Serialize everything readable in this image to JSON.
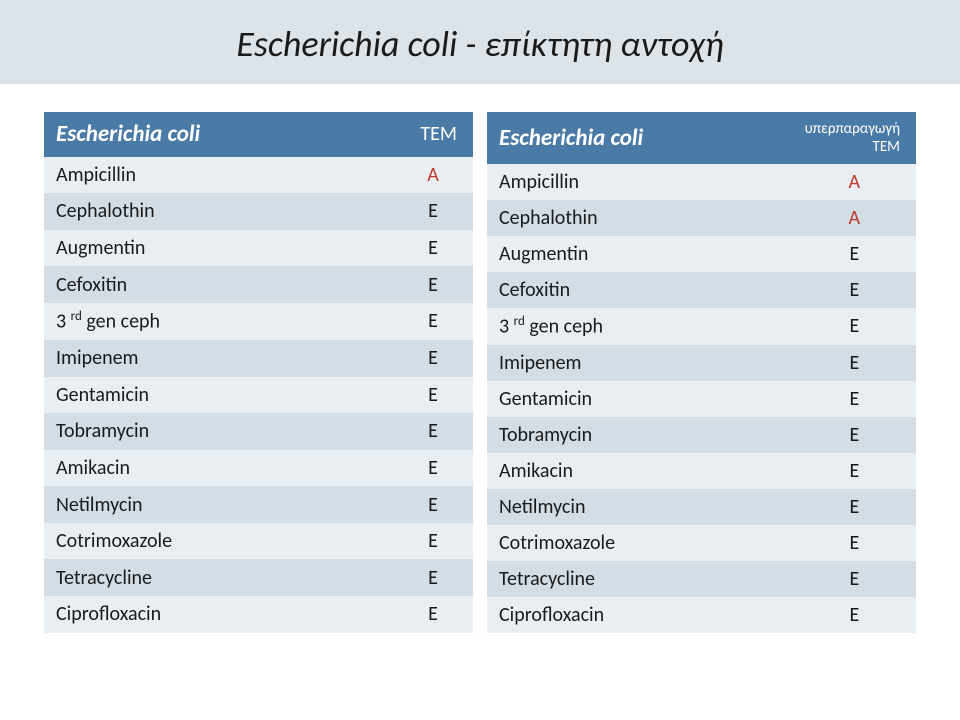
{
  "title": "Escherichia coli - επίκτητη αντοχή",
  "colors": {
    "title_bg": "#dce4e9",
    "title_text": "#1a1a1a",
    "header_bg": "#4a7ba6",
    "header_text": "#ffffff",
    "row_odd": "#e9eef3",
    "row_even": "#d2dde6",
    "resistant": "#c0392b",
    "normal": "#1a1a1a"
  },
  "tables": [
    {
      "header_main": "Escherichia coli",
      "header_sub": "TEM",
      "header_sub_small": false,
      "rows": [
        {
          "drug": "Ampicillin",
          "val": "Α",
          "resistant": true
        },
        {
          "drug": "Cephalothin",
          "val": "Ε",
          "resistant": false
        },
        {
          "drug": "Augmentin",
          "val": "Ε",
          "resistant": false
        },
        {
          "drug": "Cefoxitin",
          "val": "Ε",
          "resistant": false
        },
        {
          "drug": "3 rd gen ceph",
          "val": "Ε",
          "resistant": false,
          "sup": true
        },
        {
          "drug": "Imipenem",
          "val": "Ε",
          "resistant": false
        },
        {
          "drug": "Gentamicin",
          "val": "Ε",
          "resistant": false
        },
        {
          "drug": "Tobramycin",
          "val": "Ε",
          "resistant": false
        },
        {
          "drug": "Amikacin",
          "val": "Ε",
          "resistant": false
        },
        {
          "drug": "Netilmycin",
          "val": "Ε",
          "resistant": false
        },
        {
          "drug": "Cotrimoxazole",
          "val": "Ε",
          "resistant": false
        },
        {
          "drug": "Tetracycline",
          "val": "Ε",
          "resistant": false
        },
        {
          "drug": "Ciprofloxacin",
          "val": "Ε",
          "resistant": false
        }
      ]
    },
    {
      "header_main": "Escherichia coli",
      "header_sub": "υπερπαραγωγή ΤΕΜ",
      "header_sub_small": true,
      "rows": [
        {
          "drug": "Ampicillin",
          "val": "Α",
          "resistant": true
        },
        {
          "drug": "Cephalothin",
          "val": "Α",
          "resistant": true
        },
        {
          "drug": "Augmentin",
          "val": "Ε",
          "resistant": false
        },
        {
          "drug": "Cefoxitin",
          "val": "Ε",
          "resistant": false
        },
        {
          "drug": "3 rd gen ceph",
          "val": "Ε",
          "resistant": false,
          "sup": true
        },
        {
          "drug": "Imipenem",
          "val": "Ε",
          "resistant": false
        },
        {
          "drug": "Gentamicin",
          "val": "Ε",
          "resistant": false
        },
        {
          "drug": "Tobramycin",
          "val": "Ε",
          "resistant": false
        },
        {
          "drug": "Amikacin",
          "val": "Ε",
          "resistant": false
        },
        {
          "drug": "Netilmycin",
          "val": "Ε",
          "resistant": false
        },
        {
          "drug": "Cotrimoxazole",
          "val": "Ε",
          "resistant": false
        },
        {
          "drug": "Tetracycline",
          "val": "Ε",
          "resistant": false
        },
        {
          "drug": "Ciprofloxacin",
          "val": "Ε",
          "resistant": false
        }
      ]
    }
  ]
}
